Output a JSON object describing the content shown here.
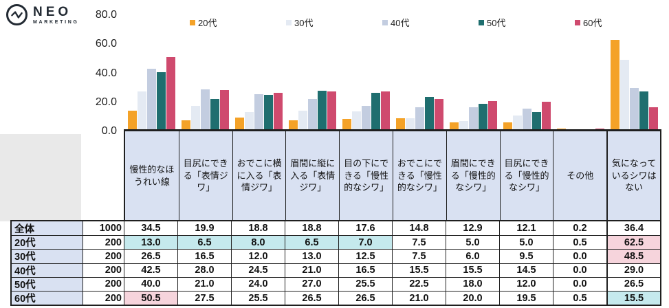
{
  "logo": {
    "brand": "NEO",
    "brand_sub": "MARKETING"
  },
  "chart_data": {
    "type": "bar",
    "title": "",
    "xlabel": "",
    "ylabel": "",
    "ylim": [
      0,
      80
    ],
    "ytick_labels": [
      "80.0",
      "60.0",
      "40.0",
      "20.0",
      "0.0"
    ],
    "grid": false,
    "legend_position": "top",
    "categories": [
      "慢性的なほうれい線",
      "目尻にできる「表情ジワ」",
      "おでこに横に入る「表情ジワ」",
      "眉間に縦に入る「表情ジワ」",
      "目の下にできる「慢性的なシワ」",
      "おでこにできる「慢性的なシワ」",
      "眉間にできる「慢性的なシワ」",
      "目尻にできる「慢性的なシワ」",
      "その他",
      "気になっているシワはない"
    ],
    "series": [
      {
        "name": "20代",
        "color": "#F4A228",
        "values": [
          13.0,
          6.5,
          8.0,
          6.5,
          7.0,
          7.5,
          5.0,
          5.0,
          0.5,
          62.5
        ]
      },
      {
        "name": "30代",
        "color": "#E4EAF3",
        "values": [
          26.5,
          16.5,
          12.0,
          13.0,
          12.5,
          7.5,
          6.0,
          9.5,
          0.0,
          48.5
        ]
      },
      {
        "name": "40代",
        "color": "#C3CDE0",
        "values": [
          42.5,
          28.0,
          24.5,
          21.0,
          16.5,
          15.5,
          15.5,
          14.5,
          0.0,
          29.0
        ]
      },
      {
        "name": "50代",
        "color": "#1F6E6F",
        "values": [
          40.0,
          21.0,
          24.0,
          27.0,
          25.5,
          22.5,
          18.0,
          12.0,
          0.0,
          26.5
        ]
      },
      {
        "name": "60代",
        "color": "#CF4A6E",
        "values": [
          50.5,
          27.5,
          25.5,
          26.5,
          26.5,
          21.0,
          20.0,
          19.5,
          0.5,
          15.5
        ]
      }
    ]
  },
  "table": {
    "highlight_colors": {
      "cyan": "#C5E9ED",
      "pink": "#F6D4DC"
    },
    "rows": [
      {
        "label": "全体",
        "n": "1000",
        "values": [
          "34.5",
          "19.9",
          "18.8",
          "18.8",
          "17.6",
          "14.8",
          "12.9",
          "12.1",
          "0.2",
          "36.4"
        ],
        "marks": [
          "",
          "",
          "",
          "",
          "",
          "",
          "",
          "",
          "",
          ""
        ]
      },
      {
        "label": "20代",
        "n": "200",
        "values": [
          "13.0",
          "6.5",
          "8.0",
          "6.5",
          "7.0",
          "7.5",
          "5.0",
          "5.0",
          "0.5",
          "62.5"
        ],
        "marks": [
          "cyan",
          "cyan",
          "cyan",
          "cyan",
          "cyan",
          "",
          "",
          "",
          "",
          "pink"
        ]
      },
      {
        "label": "30代",
        "n": "200",
        "values": [
          "26.5",
          "16.5",
          "12.0",
          "13.0",
          "12.5",
          "7.5",
          "6.0",
          "9.5",
          "0.0",
          "48.5"
        ],
        "marks": [
          "",
          "",
          "",
          "",
          "",
          "",
          "",
          "",
          "",
          "pink"
        ]
      },
      {
        "label": "40代",
        "n": "200",
        "values": [
          "42.5",
          "28.0",
          "24.5",
          "21.0",
          "16.5",
          "15.5",
          "15.5",
          "14.5",
          "0.0",
          "29.0"
        ],
        "marks": [
          "",
          "",
          "",
          "",
          "",
          "",
          "",
          "",
          "",
          ""
        ]
      },
      {
        "label": "50代",
        "n": "200",
        "values": [
          "40.0",
          "21.0",
          "24.0",
          "27.0",
          "25.5",
          "22.5",
          "18.0",
          "12.0",
          "0.0",
          "26.5"
        ],
        "marks": [
          "",
          "",
          "",
          "",
          "",
          "",
          "",
          "",
          "",
          ""
        ]
      },
      {
        "label": "60代",
        "n": "200",
        "values": [
          "50.5",
          "27.5",
          "25.5",
          "26.5",
          "26.5",
          "21.0",
          "20.0",
          "19.5",
          "0.5",
          "15.5"
        ],
        "marks": [
          "pink",
          "",
          "",
          "",
          "",
          "",
          "",
          "",
          "",
          "cyan"
        ]
      }
    ]
  }
}
